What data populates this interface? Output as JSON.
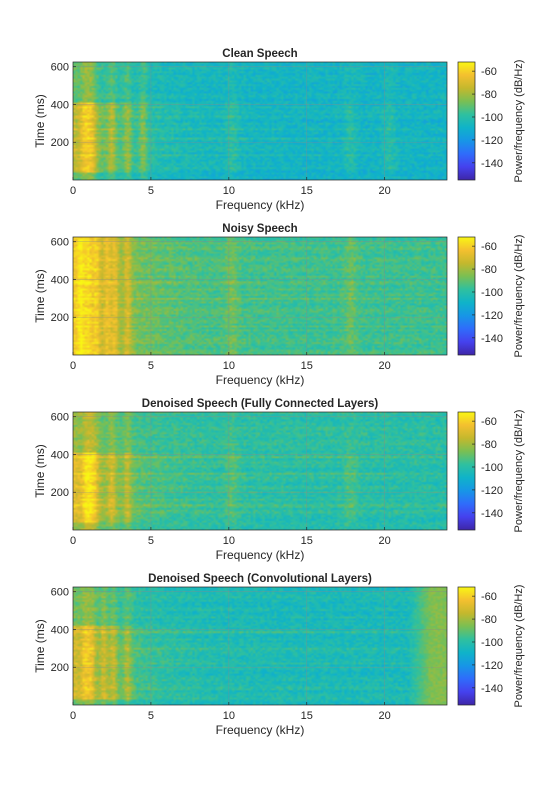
{
  "figure": {
    "colormap": [
      "#3e26a8",
      "#4541ee",
      "#2f6cfb",
      "#1796e6",
      "#0fb3c9",
      "#2fc09f",
      "#7abf53",
      "#c4b82d",
      "#f4c02f",
      "#f9f614"
    ]
  },
  "chart_data": [
    {
      "type": "heatmap",
      "title": "Clean Speech",
      "xlabel": "Frequency (kHz)",
      "ylabel": "Time (ms)",
      "xlim": [
        0,
        24
      ],
      "ylim": [
        0,
        625
      ],
      "xticks": [
        0,
        5,
        10,
        15,
        20
      ],
      "yticks": [
        200,
        400,
        600
      ],
      "grid": true,
      "colorbar": {
        "label": "Power/frequency (dB/Hz)",
        "range": [
          -155,
          -52
        ],
        "ticks": [
          -60,
          -80,
          -100,
          -120,
          -140
        ]
      },
      "noise_floor_db": -108,
      "speech_region_ms": [
        40,
        410
      ],
      "harmonic_bands_khz": [
        0.7,
        1.0,
        1.3,
        2.5,
        3.5,
        4.5,
        10.2,
        17.8,
        20.3
      ],
      "horizontal_tracks_ms": [
        88,
        130,
        160,
        218,
        265,
        300,
        338,
        385
      ],
      "rolloff": null
    },
    {
      "type": "heatmap",
      "title": "Noisy Speech",
      "xlabel": "Frequency (kHz)",
      "ylabel": "Time (ms)",
      "xlim": [
        0,
        24
      ],
      "ylim": [
        0,
        625
      ],
      "xticks": [
        0,
        5,
        10,
        15,
        20
      ],
      "yticks": [
        200,
        400,
        600
      ],
      "grid": true,
      "colorbar": {
        "label": "Power/frequency (dB/Hz)",
        "range": [
          -155,
          -52
        ],
        "ticks": [
          -60,
          -80,
          -100,
          -120,
          -140
        ]
      },
      "noise_floor_db": -96,
      "speech_region_ms": [
        0,
        625
      ],
      "harmonic_bands_khz": [
        0.5,
        1.0,
        1.5,
        2.2,
        2.7,
        3.5,
        10.2,
        17.8
      ],
      "horizontal_tracks_ms": [
        218,
        300,
        385
      ],
      "rolloff": null
    },
    {
      "type": "heatmap",
      "title": "Denoised Speech (Fully Connected Layers)",
      "xlabel": "Frequency (kHz)",
      "ylabel": "Time (ms)",
      "xlim": [
        0,
        24
      ],
      "ylim": [
        0,
        625
      ],
      "xticks": [
        0,
        5,
        10,
        15,
        20
      ],
      "yticks": [
        200,
        400,
        600
      ],
      "grid": true,
      "colorbar": {
        "label": "Power/frequency (dB/Hz)",
        "range": [
          -155,
          -52
        ],
        "ticks": [
          -60,
          -80,
          -100,
          -120,
          -140
        ]
      },
      "noise_floor_db": -100,
      "speech_region_ms": [
        40,
        410
      ],
      "harmonic_bands_khz": [
        0.8,
        1.1,
        1.4,
        2.5,
        3.5,
        10.2,
        17.8
      ],
      "horizontal_tracks_ms": [
        88,
        130,
        160,
        218,
        265,
        300,
        338,
        385
      ],
      "rolloff": null
    },
    {
      "type": "heatmap",
      "title": "Denoised Speech (Convolutional Layers)",
      "xlabel": "Frequency (kHz)",
      "ylabel": "Time (ms)",
      "xlim": [
        0,
        24
      ],
      "ylim": [
        0,
        625
      ],
      "xticks": [
        0,
        5,
        10,
        15,
        20
      ],
      "yticks": [
        200,
        400,
        600
      ],
      "grid": true,
      "colorbar": {
        "label": "Power/frequency (dB/Hz)",
        "range": [
          -155,
          -52
        ],
        "ticks": [
          -60,
          -80,
          -100,
          -120,
          -140
        ]
      },
      "noise_floor_db": -104,
      "speech_region_ms": [
        30,
        420
      ],
      "harmonic_bands_khz": [
        0.8,
        1.2,
        2.0,
        2.6,
        3.5
      ],
      "horizontal_tracks_ms": [
        88,
        130,
        218,
        265,
        300,
        385
      ],
      "rolloff": {
        "start_khz": 21.5,
        "level_db": -85
      }
    }
  ]
}
